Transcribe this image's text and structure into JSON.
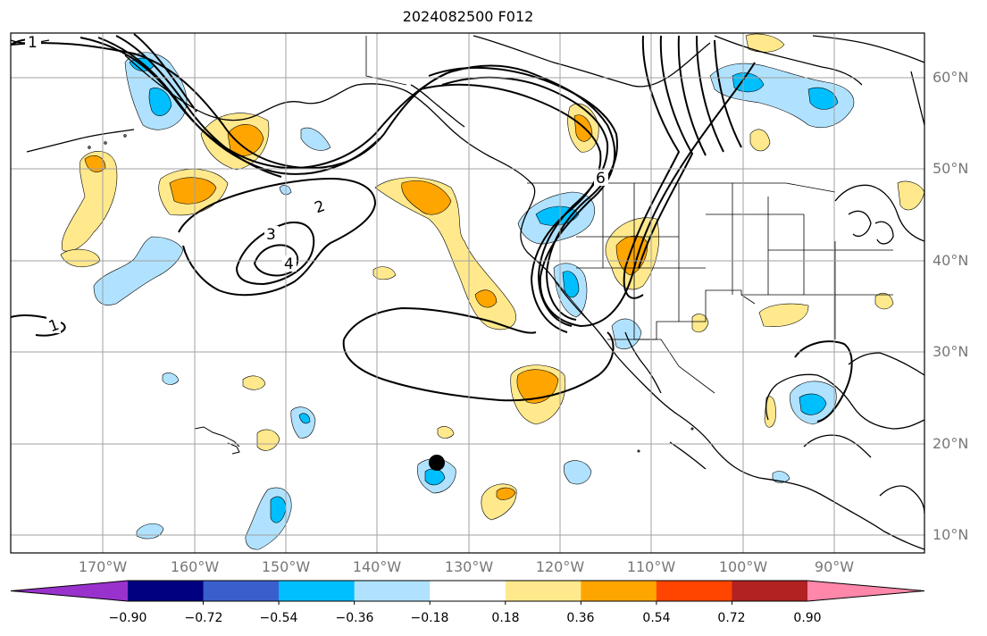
{
  "title": "2024082500 F012",
  "lon_labels": [
    "170°W",
    "160°W",
    "150°W",
    "140°W",
    "130°W",
    "120°W",
    "110°W",
    "100°W",
    "90°W"
  ],
  "lat_labels": [
    "60°N",
    "50°N",
    "40°N",
    "30°N",
    "20°N",
    "10°N"
  ],
  "contour_labels": [
    "1",
    "2",
    "3",
    "4",
    "1",
    "6"
  ],
  "colorbar": {
    "ticks": [
      "−0.90",
      "−0.72",
      "−0.54",
      "−0.36",
      "−0.18",
      "0.18",
      "0.36",
      "0.54",
      "0.72",
      "0.90"
    ],
    "colors": [
      "#9932cc",
      "#000080",
      "#3a5fcd",
      "#00bfff",
      "#b0e2ff",
      "#ffffff",
      "#ffe98c",
      "#ffa500",
      "#ff4500",
      "#b22222",
      "#ff87aa"
    ]
  }
}
